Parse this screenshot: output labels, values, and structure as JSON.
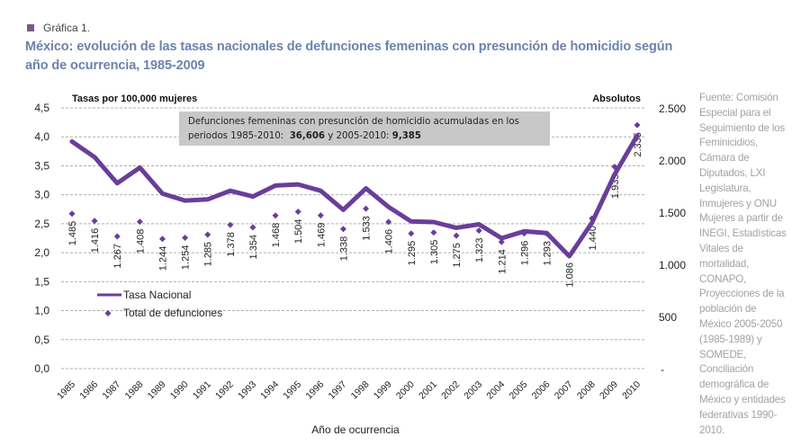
{
  "figure": {
    "label": "Gráfica 1.",
    "title": "México: evolución de las tasas nacionales de defunciones femeninas con presunción de homicidio según año de ocurrencia, 1985-2009",
    "source": "Fuente: Comisión Especial para el Seguimiento de los Feminicidios, Cámara de Diputados, LXI Legislatura, Inmujeres y ONU Mujeres a partir de INEGI, Estadísticas Vitales de mortalidad, CONAPO, Proyecciones de la población de México 2005-2050 (1985-1989) y SOMEDE, Conciliación demográfica de México y entidades federativas 1990-2010."
  },
  "note": {
    "line1": "Defunciones femeninas con presunción de homicidio acumuladas en los",
    "line2_prefix": "periodos 1985-2010:",
    "value1": "36,606",
    "connector": "y 2005-2010:",
    "value2": "9,385"
  },
  "colors": {
    "series": "#6a3d9a",
    "grid": "#b0b0b0",
    "title": "#6b82ad",
    "note_bg": "#c8c8c8"
  },
  "chart_data": {
    "type": "line",
    "title": "México: evolución de las tasas nacionales de defunciones femeninas con presunción de homicidio según año de ocurrencia, 1985-2009",
    "xlabel": "Año de ocurrencia",
    "ylabel": "Tasas por 100,000 mujeres",
    "y2label": "Absolutos",
    "x": [
      "1985",
      "1986",
      "1987",
      "1988",
      "1989",
      "1990",
      "1991",
      "1992",
      "1993",
      "1994",
      "1995",
      "1996",
      "1997",
      "1998",
      "1999",
      "2000",
      "2001",
      "2002",
      "2003",
      "2004",
      "2005",
      "2006",
      "2007",
      "2008",
      "2009",
      "2010"
    ],
    "ylim": [
      0,
      4.5
    ],
    "y2lim": [
      0,
      2500
    ],
    "yticks": [
      "0,0",
      "0,5",
      "1,0",
      "1,5",
      "2,0",
      "2,5",
      "3,0",
      "3,5",
      "4,0",
      "4,5"
    ],
    "y2ticks": [
      "-",
      "500",
      "1.000",
      "1.500",
      "2.000",
      "2.500"
    ],
    "grid": true,
    "legend_position": "lower-left",
    "series": [
      {
        "name": "Tasa Nacional",
        "type": "line",
        "axis": "left",
        "values": [
          3.92,
          3.65,
          3.2,
          3.47,
          3.02,
          2.9,
          2.92,
          3.07,
          2.97,
          3.16,
          3.18,
          3.07,
          2.74,
          3.11,
          2.79,
          2.54,
          2.53,
          2.43,
          2.49,
          2.25,
          2.37,
          2.34,
          1.94,
          2.52,
          3.35,
          4.02
        ]
      },
      {
        "name": "Total de defunciones",
        "type": "scatter",
        "axis": "right",
        "values": [
          1485,
          1416,
          1267,
          1408,
          1244,
          1254,
          1285,
          1378,
          1354,
          1468,
          1504,
          1469,
          1338,
          1533,
          1406,
          1295,
          1305,
          1275,
          1323,
          1214,
          1296,
          1293,
          1086,
          1440,
          1935,
          2335
        ],
        "labels": [
          "1.485",
          "1.416",
          "1.267",
          "1.408",
          "1.244",
          "1.254",
          "1.285",
          "1.378",
          "1.354",
          "1.468",
          "1.504",
          "1.469",
          "1.338",
          "1.533",
          "1.406",
          "1.295",
          "1.305",
          "1.275",
          "1.323",
          "1.214",
          "1.296",
          "1.293",
          "1.086",
          "1.440",
          "1.935",
          "2.335"
        ]
      }
    ]
  }
}
